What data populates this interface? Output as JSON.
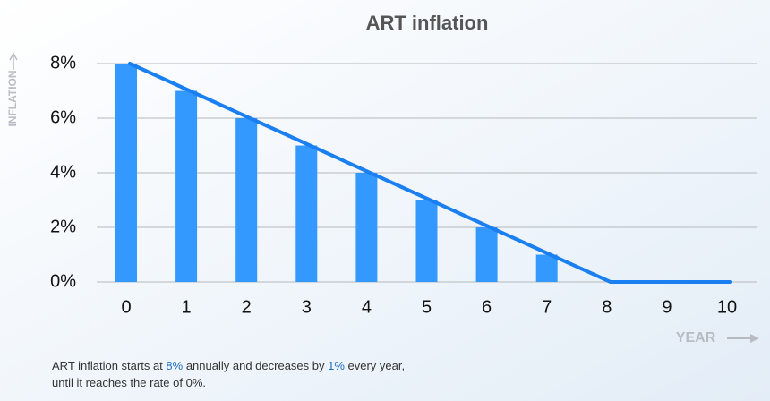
{
  "chart_data": {
    "type": "bar",
    "title": "ART inflation",
    "categories": [
      "0",
      "1",
      "2",
      "3",
      "4",
      "5",
      "6",
      "7",
      "8",
      "9",
      "10"
    ],
    "series": [
      {
        "type": "bar",
        "color": "#3399ff",
        "values": [
          8,
          7,
          6,
          5,
          4,
          3,
          2,
          1,
          0,
          0,
          0
        ]
      },
      {
        "type": "line",
        "color": "#1a7ff0",
        "values": [
          8,
          7,
          6,
          5,
          4,
          3,
          2,
          1,
          0,
          0,
          0
        ]
      }
    ],
    "ylim": [
      0,
      8
    ],
    "yticks": [
      {
        "value": 0,
        "label": "0%"
      },
      {
        "value": 2,
        "label": "2%"
      },
      {
        "value": 4,
        "label": "4%"
      },
      {
        "value": 6,
        "label": "6%"
      },
      {
        "value": 8,
        "label": "8%"
      }
    ],
    "grid": true,
    "ylabel": "INFLATION",
    "xlabel": "YEAR",
    "caption": [
      [
        "ART inflation starts at ",
        "8%",
        " annually and decreases by ",
        "1%",
        " every year,"
      ],
      [
        "until it reaches the rate of 0%."
      ]
    ]
  }
}
